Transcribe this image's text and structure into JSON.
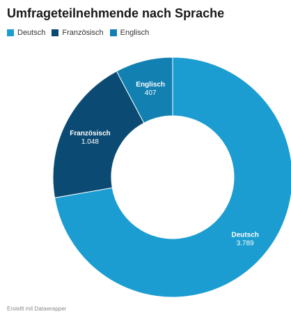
{
  "chart_data": {
    "type": "pie",
    "variant": "donut",
    "title": "Umfrageteilnehmende nach Sprache",
    "categories": [
      "Deutsch",
      "Französisch",
      "Englisch"
    ],
    "values": [
      3789,
      1048,
      407
    ],
    "value_labels": [
      "3.789",
      "1.048",
      "407"
    ],
    "colors": [
      "#1b9dd1",
      "#0b4b73",
      "#1280b1"
    ],
    "legend_position": "top-left"
  },
  "footer": {
    "credit": "Erstellt mit Datawrapper"
  }
}
